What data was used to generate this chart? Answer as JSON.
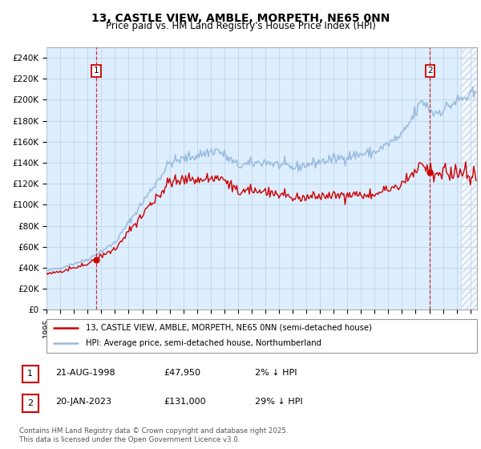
{
  "title": "13, CASTLE VIEW, AMBLE, MORPETH, NE65 0NN",
  "subtitle": "Price paid vs. HM Land Registry's House Price Index (HPI)",
  "ylim": [
    0,
    250000
  ],
  "yticks": [
    0,
    20000,
    40000,
    60000,
    80000,
    100000,
    120000,
    140000,
    160000,
    180000,
    200000,
    220000,
    240000
  ],
  "ytick_labels": [
    "£0",
    "£20K",
    "£40K",
    "£60K",
    "£80K",
    "£100K",
    "£120K",
    "£140K",
    "£160K",
    "£180K",
    "£200K",
    "£220K",
    "£240K"
  ],
  "xlim_start": 1995.0,
  "xlim_end": 2026.5,
  "price_paid_color": "#cc0000",
  "hpi_line_color": "#99bbdd",
  "background_color": "#ffffff",
  "plot_bg_color": "#ddeeff",
  "grid_color": "#c0d4e8",
  "sale1_date": 1998.635,
  "sale1_price": 47950,
  "sale2_date": 2023.055,
  "sale2_price": 131000,
  "legend_entry1": "13, CASTLE VIEW, AMBLE, MORPETH, NE65 0NN (semi-detached house)",
  "legend_entry2": "HPI: Average price, semi-detached house, Northumberland",
  "table_row1": [
    "1",
    "21-AUG-1998",
    "£47,950",
    "2% ↓ HPI"
  ],
  "table_row2": [
    "2",
    "20-JAN-2023",
    "£131,000",
    "29% ↓ HPI"
  ],
  "footer": "Contains HM Land Registry data © Crown copyright and database right 2025.\nThis data is licensed under the Open Government Licence v3.0.",
  "title_fontsize": 10,
  "subtitle_fontsize": 8.5
}
